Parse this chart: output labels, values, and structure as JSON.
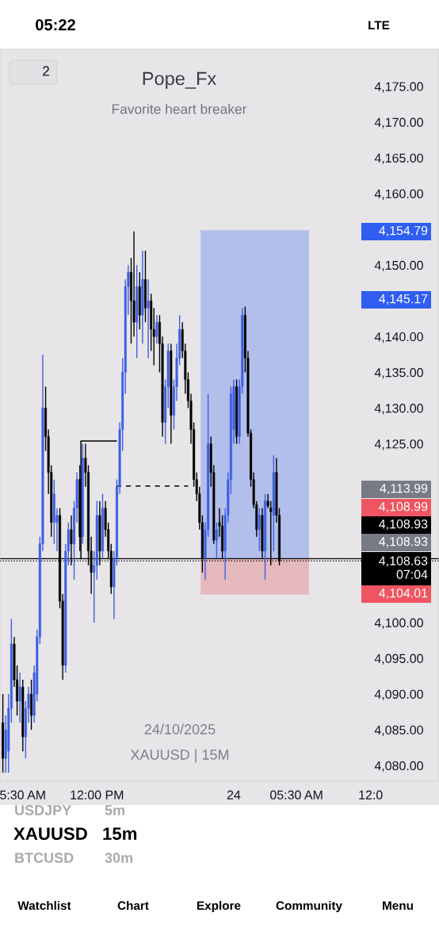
{
  "chart_data": {
    "type": "candlestick",
    "title": "Pope_Fx",
    "subtitle": "Favorite heart breaker",
    "colors": [
      "#000000",
      "#3b5fe3",
      "#3b5fe3",
      "#3b5fe3",
      "#000000",
      "#000000",
      "#3b5fe3",
      "#000000",
      "#3b5fe3",
      "#3b5fe3",
      "#000000",
      "#3b5fe3",
      "#3b5fe3",
      "#3b5fe3",
      "#3b5fe3",
      "#000000",
      "#000000",
      "#000000",
      "#3b5fe3",
      "#3b5fe3",
      "#000000",
      "#000000",
      "#3b5fe3",
      "#3b5fe3",
      "#000000",
      "#3b5fe3",
      "#3b5fe3",
      "#000000",
      "#3b5fe3",
      "#000000",
      "#000000",
      "#000000",
      "#3b5fe3",
      "#3b5fe3",
      "#000000",
      "#3b5fe3",
      "#000000",
      "#000000",
      "#000000",
      "#3b5fe3",
      "#3b5fe3",
      "#3b5fe3",
      "#3b5fe3",
      "#3b5fe3",
      "#3b5fe3",
      "#000000",
      "#000000",
      "#3b5fe3",
      "#000000",
      "#3b5fe3",
      "#000000",
      "#3b5fe3",
      "#000000",
      "#000000",
      "#3b5fe3",
      "#000000",
      "#000000",
      "#3b5fe3",
      "#3b5fe3",
      "#000000",
      "#3b5fe3",
      "#3b5fe3",
      "#3b5fe3",
      "#000000",
      "#000000",
      "#000000",
      "#000000",
      "#000000",
      "#000000",
      "#000000",
      "#000000",
      "#3b5fe3",
      "#3b5fe3",
      "#000000",
      "#000000",
      "#3b5fe3",
      "#000000",
      "#000000",
      "#3b5fe3",
      "#3b5fe3",
      "#3b5fe3",
      "#3b5fe3",
      "#000000",
      "#3b5fe3",
      "#3b5fe3",
      "#000000",
      "#000000",
      "#000000",
      "#000000",
      "#000000",
      "#3b5fe3",
      "#000000",
      "#3b5fe3",
      "#000000",
      "#000000",
      "#3b5fe3",
      "#000000",
      "#000000"
    ],
    "x": [
      "2025-10-23T03:45",
      "2025-10-23T04:00",
      "2025-10-23T04:15",
      "2025-10-23T04:30",
      "2025-10-23T04:45",
      "2025-10-23T05:00",
      "2025-10-23T05:15",
      "2025-10-23T05:30",
      "2025-10-23T05:45",
      "2025-10-23T06:00",
      "2025-10-23T06:15",
      "2025-10-23T06:30",
      "2025-10-23T06:45",
      "2025-10-23T07:00",
      "2025-10-23T07:15",
      "2025-10-23T07:30",
      "2025-10-23T07:45",
      "2025-10-23T08:00",
      "2025-10-23T08:15",
      "2025-10-23T08:30",
      "2025-10-23T08:45",
      "2025-10-23T09:00",
      "2025-10-23T09:15",
      "2025-10-23T09:30",
      "2025-10-23T09:45",
      "2025-10-23T10:00",
      "2025-10-23T10:15",
      "2025-10-23T10:30",
      "2025-10-23T10:45",
      "2025-10-23T11:00",
      "2025-10-23T11:15",
      "2025-10-23T11:30",
      "2025-10-23T11:45",
      "2025-10-23T12:00",
      "2025-10-23T12:15",
      "2025-10-23T12:30",
      "2025-10-23T12:45",
      "2025-10-23T13:00",
      "2025-10-23T13:15",
      "2025-10-23T13:30",
      "2025-10-23T13:45",
      "2025-10-23T14:00",
      "2025-10-23T14:15",
      "2025-10-23T14:30",
      "2025-10-23T14:45",
      "2025-10-23T15:00",
      "2025-10-23T15:15",
      "2025-10-23T15:30",
      "2025-10-23T15:45",
      "2025-10-23T16:00",
      "2025-10-23T16:15",
      "2025-10-23T16:30",
      "2025-10-23T16:45",
      "2025-10-23T17:00",
      "2025-10-23T17:15",
      "2025-10-23T17:30",
      "2025-10-23T17:45",
      "2025-10-23T18:00",
      "2025-10-23T18:15",
      "2025-10-23T18:30",
      "2025-10-23T18:45",
      "2025-10-23T19:00",
      "2025-10-23T19:15",
      "2025-10-23T19:30",
      "2025-10-23T19:45",
      "2025-10-23T20:00",
      "2025-10-23T20:15",
      "2025-10-23T20:30",
      "2025-10-23T20:45",
      "2025-10-23T21:00",
      "2025-10-23T21:15",
      "2025-10-23T21:30",
      "2025-10-23T21:45",
      "2025-10-23T22:00",
      "2025-10-23T22:15",
      "2025-10-23T22:30",
      "2025-10-23T22:45",
      "2025-10-23T23:00",
      "2025-10-23T23:15",
      "2025-10-23T23:30",
      "2025-10-23T23:45",
      "2025-10-24T00:00",
      "2025-10-24T00:15",
      "2025-10-24T00:30",
      "2025-10-24T00:45",
      "2025-10-24T01:00",
      "2025-10-24T01:15",
      "2025-10-24T01:30",
      "2025-10-24T01:45",
      "2025-10-24T02:00",
      "2025-10-24T02:15",
      "2025-10-24T02:30",
      "2025-10-24T02:45",
      "2025-10-24T03:00",
      "2025-10-24T03:15",
      "2025-10-24T03:30",
      "2025-10-24T03:45",
      "2025-10-24T04:00"
    ],
    "ohlc": [
      [
        4086,
        4090,
        4079,
        4081
      ],
      [
        4081,
        4087,
        4079,
        4085
      ],
      [
        4082,
        4090,
        4079,
        4088
      ],
      [
        4088,
        4100.5,
        4086,
        4097
      ],
      [
        4097,
        4098,
        4091,
        4092
      ],
      [
        4092,
        4094,
        4087,
        4089
      ],
      [
        4089,
        4093,
        4086,
        4091
      ],
      [
        4091,
        4092,
        4082,
        4084
      ],
      [
        4084,
        4089,
        4081,
        4088
      ],
      [
        4088,
        4091,
        4086,
        4090
      ],
      [
        4090,
        4092,
        4085,
        4087
      ],
      [
        4087,
        4094,
        4086,
        4093
      ],
      [
        4090,
        4099,
        4089,
        4098
      ],
      [
        4098,
        4112,
        4097,
        4111
      ],
      [
        4111,
        4137.5,
        4110,
        4130
      ],
      [
        4130,
        4133,
        4124,
        4126
      ],
      [
        4126,
        4127,
        4118,
        4121
      ],
      [
        4121,
        4122,
        4112,
        4114
      ],
      [
        4114,
        4120,
        4111,
        4118
      ],
      [
        4114,
        4116,
        4110,
        4115
      ],
      [
        4115,
        4116,
        4102,
        4103
      ],
      [
        4103,
        4104,
        4092,
        4094
      ],
      [
        4094,
        4111,
        4093,
        4110
      ],
      [
        4110,
        4114,
        4108,
        4113
      ],
      [
        4113,
        4115,
        4108,
        4111
      ],
      [
        4111,
        4117,
        4106,
        4116
      ],
      [
        4116,
        4121,
        4114,
        4120
      ],
      [
        4120,
        4122,
        4110,
        4112
      ],
      [
        4112,
        4125,
        4111,
        4123
      ],
      [
        4123,
        4125,
        4119,
        4121
      ],
      [
        4121,
        4122,
        4108,
        4110
      ],
      [
        4110,
        4112,
        4104,
        4107
      ],
      [
        4107,
        4110,
        4100,
        4108
      ],
      [
        4108,
        4117,
        4106,
        4115
      ],
      [
        4115,
        4117,
        4108,
        4110
      ],
      [
        4110,
        4118,
        4109,
        4116
      ],
      [
        4116,
        4117,
        4112,
        4113
      ],
      [
        4113,
        4114,
        4109,
        4110
      ],
      [
        4110,
        4111,
        4104,
        4105
      ],
      [
        4105,
        4110,
        4100.5,
        4109
      ],
      [
        4109,
        4120,
        4108,
        4119
      ],
      [
        4119,
        4128,
        4118,
        4127
      ],
      [
        4127,
        4137,
        4124,
        4135
      ],
      [
        4135,
        4148,
        4132,
        4147
      ],
      [
        4147,
        4150,
        4143,
        4149
      ],
      [
        4149,
        4151,
        4139,
        4145
      ],
      [
        4145,
        4154.7,
        4140,
        4142
      ],
      [
        4142,
        4150,
        4137,
        4147
      ],
      [
        4147,
        4149,
        4141,
        4143
      ],
      [
        4143,
        4152,
        4139,
        4148
      ],
      [
        4148,
        4152,
        4142,
        4144
      ],
      [
        4144,
        4148,
        4137,
        4145
      ],
      [
        4145,
        4146,
        4138,
        4141
      ],
      [
        4141,
        4144,
        4136,
        4140
      ],
      [
        4140,
        4143,
        4139,
        4142
      ],
      [
        4142,
        4143,
        4135,
        4139
      ],
      [
        4139,
        4140,
        4126,
        4128
      ],
      [
        4128,
        4134,
        4125,
        4133
      ],
      [
        4133,
        4139,
        4130,
        4138
      ],
      [
        4138,
        4139,
        4125,
        4129
      ],
      [
        4129,
        4134,
        4127,
        4133
      ],
      [
        4133,
        4139,
        4131,
        4137
      ],
      [
        4137,
        4143,
        4136,
        4141
      ],
      [
        4141,
        4142,
        4137,
        4138
      ],
      [
        4138,
        4139,
        4132,
        4134
      ],
      [
        4134,
        4135,
        4130,
        4131
      ],
      [
        4131,
        4132,
        4125,
        4127
      ],
      [
        4127,
        4128,
        4119,
        4120
      ],
      [
        4120,
        4121,
        4117,
        4118
      ],
      [
        4118,
        4119,
        4113,
        4114
      ],
      [
        4114,
        4115,
        4107,
        4109
      ],
      [
        4109,
        4114,
        4106,
        4113
      ],
      [
        4113,
        4132,
        4112,
        4125
      ],
      [
        4125,
        4126,
        4119,
        4121
      ],
      [
        4121,
        4122,
        4111,
        4111.5
      ],
      [
        4111.5,
        4114,
        4109,
        4113
      ],
      [
        4114,
        4116,
        4112,
        4113.5
      ],
      [
        4113.5,
        4115,
        4109,
        4110
      ],
      [
        4110,
        4116,
        4106,
        4115
      ],
      [
        4115,
        4121,
        4114,
        4120
      ],
      [
        4120,
        4133,
        4118,
        4132
      ],
      [
        4127,
        4134,
        4125,
        4133
      ],
      [
        4133,
        4134,
        4125,
        4126
      ],
      [
        4126,
        4134,
        4125,
        4133
      ],
      [
        4133,
        4144,
        4132,
        4143
      ],
      [
        4143,
        4144.2,
        4135,
        4137
      ],
      [
        4137,
        4138,
        4126,
        4126.5
      ],
      [
        4126.5,
        4127,
        4119,
        4120
      ],
      [
        4120,
        4121,
        4116,
        4116.5
      ],
      [
        4116.5,
        4117,
        4112,
        4113
      ],
      [
        4113,
        4116,
        4110,
        4115
      ],
      [
        4115,
        4116,
        4109,
        4110
      ],
      [
        4110,
        4118,
        4106,
        4117
      ],
      [
        4117,
        4118,
        4116,
        4116.3
      ],
      [
        4116,
        4117,
        4108,
        4115.5
      ],
      [
        4115,
        4123.4,
        4110,
        4121
      ],
      [
        4121,
        4123,
        4114,
        4115
      ],
      [
        4115,
        4116,
        4108,
        4108.63
      ]
    ],
    "series": [
      {
        "type": "line",
        "color": "#b3bfeb",
        "x": [
          "2025-10-23T21:06",
          "2025-10-24T06:36"
        ],
        "values": [
          4154.79,
          4154.79
        ],
        "lower": [
          4108.93,
          4108.93
        ],
        "upper": [
          4154.79,
          4154.79
        ]
      },
      {
        "type": "line",
        "color": "#e5b8be",
        "x": [
          "2025-10-23T21:06",
          "2025-10-24T06:36"
        ],
        "values": [
          4104.01,
          4104.01
        ],
        "lower": [
          4104.01,
          4104.01
        ],
        "upper": [
          4108.93,
          4108.93
        ]
      },
      {
        "type": "line",
        "color": "#000000",
        "line_style": "solid",
        "x": [
          "2025-10-23T10:36",
          "2025-10-23T10:36",
          "2025-10-23T13:42"
        ],
        "values": [
          4108.93,
          4125.4,
          4125.4
        ]
      },
      {
        "type": "line",
        "color": "#000000",
        "line_style": "dashed",
        "x": [
          "2025-10-23T13:42",
          "2025-10-23T20:00"
        ],
        "values": [
          4119.1,
          4119.1
        ]
      }
    ],
    "ref_lines": [
      {
        "axis": "y",
        "value": 4108.93,
        "label": "4,108.93",
        "color": "#000000",
        "line_style": "solid"
      },
      {
        "axis": "y",
        "value": 4108.63,
        "label": "4,108.63\n07:04",
        "color": "#000000",
        "line_style": "dotted"
      }
    ],
    "xlim": [
      "2025-10-23T03:30",
      "2025-10-24T18:00"
    ],
    "ylim": [
      4077.8,
      4180.2
    ],
    "xticks": [
      {
        "value": "2025-10-23T05:30",
        "label": "5:30 AM"
      },
      {
        "value": "2025-10-23T12:00",
        "label": "12:00 PM"
      },
      {
        "value": "2025-10-24T00:00",
        "label": "24"
      },
      {
        "value": "2025-10-24T05:30",
        "label": "05:30 AM"
      },
      {
        "value": "2025-10-24T12:00",
        "label": "12:0"
      }
    ],
    "yticks": [
      {
        "value": 4080,
        "label": "4,080.00"
      },
      {
        "value": 4085,
        "label": "4,085.00"
      },
      {
        "value": 4090,
        "label": "4,090.00"
      },
      {
        "value": 4095,
        "label": "4,095.00"
      },
      {
        "value": 4100,
        "label": "4,100.00"
      },
      {
        "value": 4125,
        "label": "4,125.00"
      },
      {
        "value": 4130,
        "label": "4,130.00"
      },
      {
        "value": 4135,
        "label": "4,135.00"
      },
      {
        "value": 4140,
        "label": "4,140.00"
      },
      {
        "value": 4150,
        "label": "4,150.00"
      },
      {
        "value": 4160,
        "label": "4,160.00"
      },
      {
        "value": 4165,
        "label": "4,165.00"
      },
      {
        "value": 4170,
        "label": "4,170.00"
      },
      {
        "value": 4175,
        "label": "4,175.00"
      }
    ],
    "grid": false,
    "legend": false,
    "annotations": [
      "4,154.79",
      "4,145.17",
      "4,113.99",
      "4,108.99",
      "4,108.93",
      "4,104.01",
      "24/10/2025",
      "XAUUSD | 15M",
      "2",
      "05:22",
      "LTE",
      "USDJPY",
      "5m",
      "XAUUSD",
      "15m",
      "BTCUSD",
      "30m",
      "Watchlist",
      "Chart",
      "Explore",
      "Community",
      "Menu"
    ]
  }
}
